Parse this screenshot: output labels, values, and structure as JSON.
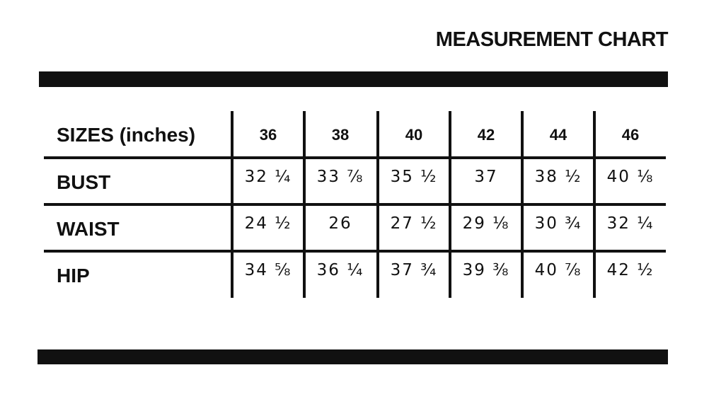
{
  "title": "MEASUREMENT CHART",
  "table": {
    "header_label": "SIZES (inches)",
    "sizes": [
      "36",
      "38",
      "40",
      "42",
      "44",
      "46"
    ],
    "rows": [
      {
        "label": "BUST",
        "values": [
          "32 ¼",
          "33 ⅞",
          "35 ½",
          "37",
          "38 ½",
          "40 ⅛"
        ]
      },
      {
        "label": "WAIST",
        "values": [
          "24 ½",
          "26",
          "27 ½",
          "29 ⅛",
          "30 ¾",
          "32 ¼"
        ]
      },
      {
        "label": "HIP",
        "values": [
          "34 ⅝",
          "36 ¼",
          "37 ¾",
          "39 ⅜",
          "40 ⅞",
          "42 ½"
        ]
      }
    ]
  }
}
